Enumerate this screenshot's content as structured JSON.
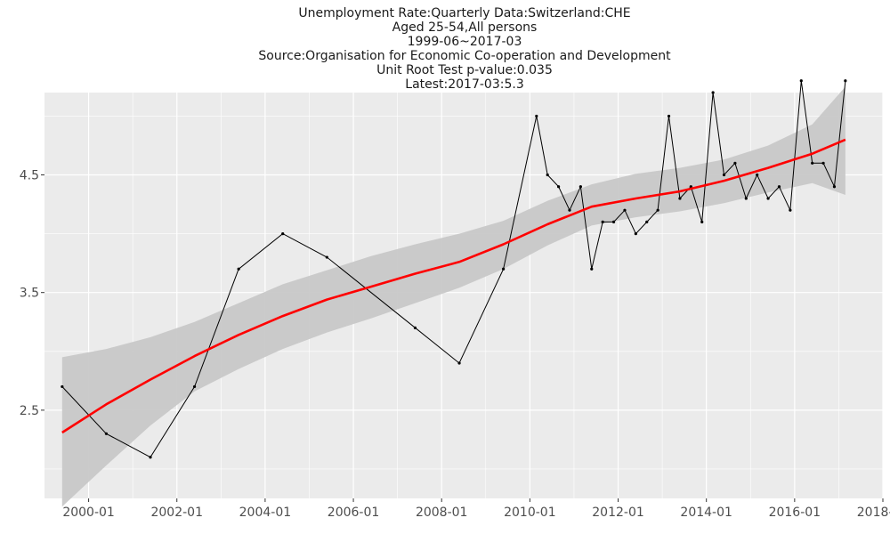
{
  "chart_data": {
    "type": "line",
    "title_lines": [
      "Unemployment Rate:Quarterly Data:Switzerland:CHE",
      "Aged 25-54,All persons",
      "1999-06~2017-03",
      "Source:Organisation for Economic Co-operation and Development",
      "Unit Root Test p-value:0.035",
      "Latest:2017-03:5.3"
    ],
    "xlabel": "",
    "ylabel": "",
    "x_ticks": [
      {
        "label": "2000-01",
        "x": 2000.0
      },
      {
        "label": "2002-01",
        "x": 2002.0
      },
      {
        "label": "2004-01",
        "x": 2004.0
      },
      {
        "label": "2006-01",
        "x": 2006.0
      },
      {
        "label": "2008-01",
        "x": 2008.0
      },
      {
        "label": "2010-01",
        "x": 2010.0
      },
      {
        "label": "2012-01",
        "x": 2012.0
      },
      {
        "label": "2014-01",
        "x": 2014.0
      },
      {
        "label": "2016-01",
        "x": 2016.0
      },
      {
        "label": "2018-01",
        "x": 2018.0
      }
    ],
    "y_ticks": [
      {
        "label": "2.5",
        "y": 2.5
      },
      {
        "label": "3.5",
        "y": 3.5
      },
      {
        "label": "4.5",
        "y": 4.5
      }
    ],
    "xlim": [
      1999.0,
      2018.0
    ],
    "ylim": [
      1.75,
      5.2
    ],
    "grid": true,
    "series": [
      {
        "color": "#000000",
        "points": [
          {
            "x": 1999.4,
            "y": 2.7
          },
          {
            "x": 2000.4,
            "y": 2.3
          },
          {
            "x": 2001.4,
            "y": 2.1
          },
          {
            "x": 2002.4,
            "y": 2.7
          },
          {
            "x": 2003.4,
            "y": 3.7
          },
          {
            "x": 2004.4,
            "y": 4.0
          },
          {
            "x": 2005.4,
            "y": 3.8
          },
          {
            "x": 2007.4,
            "y": 3.2
          },
          {
            "x": 2008.4,
            "y": 2.9
          },
          {
            "x": 2009.4,
            "y": 3.7
          },
          {
            "x": 2010.15,
            "y": 5.0
          },
          {
            "x": 2010.4,
            "y": 4.5
          },
          {
            "x": 2010.65,
            "y": 4.4
          },
          {
            "x": 2010.9,
            "y": 4.2
          },
          {
            "x": 2011.15,
            "y": 4.4
          },
          {
            "x": 2011.4,
            "y": 3.7
          },
          {
            "x": 2011.65,
            "y": 4.1
          },
          {
            "x": 2011.9,
            "y": 4.1
          },
          {
            "x": 2012.15,
            "y": 4.2
          },
          {
            "x": 2012.4,
            "y": 4.0
          },
          {
            "x": 2012.65,
            "y": 4.1
          },
          {
            "x": 2012.9,
            "y": 4.2
          },
          {
            "x": 2013.15,
            "y": 5.0
          },
          {
            "x": 2013.4,
            "y": 4.3
          },
          {
            "x": 2013.65,
            "y": 4.4
          },
          {
            "x": 2013.9,
            "y": 4.1
          },
          {
            "x": 2014.15,
            "y": 5.2
          },
          {
            "x": 2014.4,
            "y": 4.5
          },
          {
            "x": 2014.65,
            "y": 4.6
          },
          {
            "x": 2014.9,
            "y": 4.3
          },
          {
            "x": 2015.15,
            "y": 4.5
          },
          {
            "x": 2015.4,
            "y": 4.3
          },
          {
            "x": 2015.65,
            "y": 4.4
          },
          {
            "x": 2015.9,
            "y": 4.2
          },
          {
            "x": 2016.15,
            "y": 5.3
          },
          {
            "x": 2016.4,
            "y": 4.6
          },
          {
            "x": 2016.65,
            "y": 4.6
          },
          {
            "x": 2016.9,
            "y": 4.4
          },
          {
            "x": 2017.15,
            "y": 5.3
          }
        ]
      }
    ],
    "trend": {
      "color": "#ff0000",
      "band_color": "#c8c8c8",
      "points": [
        {
          "x": 1999.4,
          "y": 2.31,
          "lo": 1.68,
          "hi": 2.95
        },
        {
          "x": 2000.4,
          "y": 2.55,
          "lo": 2.03,
          "hi": 3.02
        },
        {
          "x": 2001.4,
          "y": 2.76,
          "lo": 2.37,
          "hi": 3.12
        },
        {
          "x": 2002.4,
          "y": 2.96,
          "lo": 2.66,
          "hi": 3.25
        },
        {
          "x": 2003.4,
          "y": 3.14,
          "lo": 2.85,
          "hi": 3.41
        },
        {
          "x": 2004.4,
          "y": 3.3,
          "lo": 3.02,
          "hi": 3.57
        },
        {
          "x": 2005.4,
          "y": 3.44,
          "lo": 3.16,
          "hi": 3.69
        },
        {
          "x": 2006.4,
          "y": 3.55,
          "lo": 3.28,
          "hi": 3.81
        },
        {
          "x": 2007.4,
          "y": 3.66,
          "lo": 3.41,
          "hi": 3.91
        },
        {
          "x": 2008.4,
          "y": 3.76,
          "lo": 3.54,
          "hi": 4.0
        },
        {
          "x": 2009.4,
          "y": 3.91,
          "lo": 3.7,
          "hi": 4.11
        },
        {
          "x": 2010.4,
          "y": 4.08,
          "lo": 3.9,
          "hi": 4.28
        },
        {
          "x": 2011.4,
          "y": 4.23,
          "lo": 4.07,
          "hi": 4.42
        },
        {
          "x": 2012.4,
          "y": 4.3,
          "lo": 4.14,
          "hi": 4.51
        },
        {
          "x": 2013.4,
          "y": 4.36,
          "lo": 4.19,
          "hi": 4.56
        },
        {
          "x": 2014.4,
          "y": 4.45,
          "lo": 4.26,
          "hi": 4.63
        },
        {
          "x": 2015.4,
          "y": 4.56,
          "lo": 4.35,
          "hi": 4.75
        },
        {
          "x": 2016.4,
          "y": 4.68,
          "lo": 4.43,
          "hi": 4.93
        },
        {
          "x": 2017.15,
          "y": 4.8,
          "lo": 4.33,
          "hi": 5.25
        }
      ]
    }
  }
}
